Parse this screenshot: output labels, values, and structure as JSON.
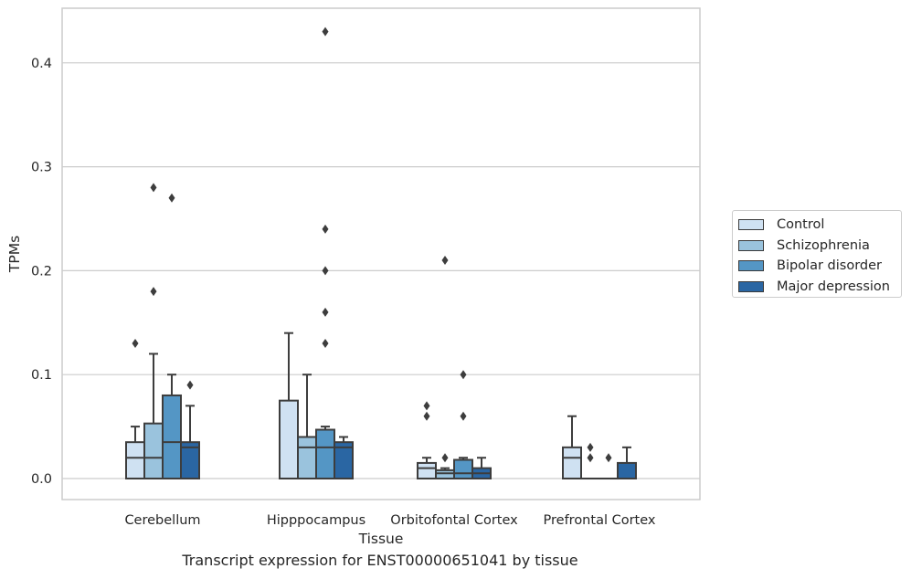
{
  "chart_data": {
    "type": "box",
    "xlabel": "Tissue",
    "ylabel": "TPMs",
    "caption": "Transcript expression for ENST00000651041 by tissue",
    "categories": [
      "Cerebellum",
      "Hipppocampus",
      "Orbitofontal Cortex",
      "Prefrontal Cortex"
    ],
    "ylim": [
      -0.021,
      0.455
    ],
    "yticks": [
      "0.0",
      "0.1",
      "0.2",
      "0.3",
      "0.4"
    ],
    "grid": true,
    "legend_position": "right",
    "series": [
      {
        "name": "Control",
        "color": "#cfe1f2",
        "boxes": [
          {
            "q1": 0,
            "median": 0.02,
            "q3": 0.035,
            "whisker_low": 0,
            "whisker_high": 0.05,
            "outliers": [
              0.13
            ]
          },
          {
            "q1": 0,
            "median": 0,
            "q3": 0.075,
            "whisker_low": 0,
            "whisker_high": 0.14,
            "outliers": []
          },
          {
            "q1": 0,
            "median": 0.01,
            "q3": 0.015,
            "whisker_low": 0,
            "whisker_high": 0.02,
            "outliers": [
              0.06,
              0.07
            ]
          },
          {
            "q1": 0,
            "median": 0.02,
            "q3": 0.03,
            "whisker_low": 0,
            "whisker_high": 0.06,
            "outliers": []
          }
        ]
      },
      {
        "name": "Schizophrenia",
        "color": "#9ac3dd",
        "boxes": [
          {
            "q1": 0,
            "median": 0.02,
            "q3": 0.053,
            "whisker_low": 0,
            "whisker_high": 0.12,
            "outliers": [
              0.18,
              0.28
            ]
          },
          {
            "q1": 0,
            "median": 0.03,
            "q3": 0.04,
            "whisker_low": 0,
            "whisker_high": 0.1,
            "outliers": []
          },
          {
            "q1": 0,
            "median": 0.005,
            "q3": 0.008,
            "whisker_low": 0,
            "whisker_high": 0.01,
            "outliers": [
              0.02,
              0.21
            ]
          },
          {
            "q1": 0,
            "median": 0,
            "q3": 0,
            "whisker_low": 0,
            "whisker_high": 0,
            "outliers": [
              0.02,
              0.03
            ]
          }
        ]
      },
      {
        "name": "Bipolar disorder",
        "color": "#5496c5",
        "boxes": [
          {
            "q1": 0,
            "median": 0.035,
            "q3": 0.08,
            "whisker_low": 0,
            "whisker_high": 0.1,
            "outliers": [
              0.27
            ]
          },
          {
            "q1": 0,
            "median": 0.03,
            "q3": 0.047,
            "whisker_low": 0,
            "whisker_high": 0.05,
            "outliers": [
              0.13,
              0.16,
              0.2,
              0.24,
              0.43
            ]
          },
          {
            "q1": 0,
            "median": 0.005,
            "q3": 0.018,
            "whisker_low": 0,
            "whisker_high": 0.02,
            "outliers": [
              0.06,
              0.1
            ]
          },
          {
            "q1": 0,
            "median": 0,
            "q3": 0,
            "whisker_low": 0,
            "whisker_high": 0,
            "outliers": [
              0.02
            ]
          }
        ]
      },
      {
        "name": "Major depression",
        "color": "#2a66a3",
        "boxes": [
          {
            "q1": 0,
            "median": 0.03,
            "q3": 0.035,
            "whisker_low": 0,
            "whisker_high": 0.07,
            "outliers": [
              0.09
            ]
          },
          {
            "q1": 0,
            "median": 0.03,
            "q3": 0.035,
            "whisker_low": 0,
            "whisker_high": 0.04,
            "outliers": []
          },
          {
            "q1": 0,
            "median": 0.005,
            "q3": 0.01,
            "whisker_low": 0,
            "whisker_high": 0.02,
            "outliers": []
          },
          {
            "q1": 0,
            "median": 0,
            "q3": 0.015,
            "whisker_low": 0,
            "whisker_high": 0.03,
            "outliers": []
          }
        ]
      }
    ]
  }
}
